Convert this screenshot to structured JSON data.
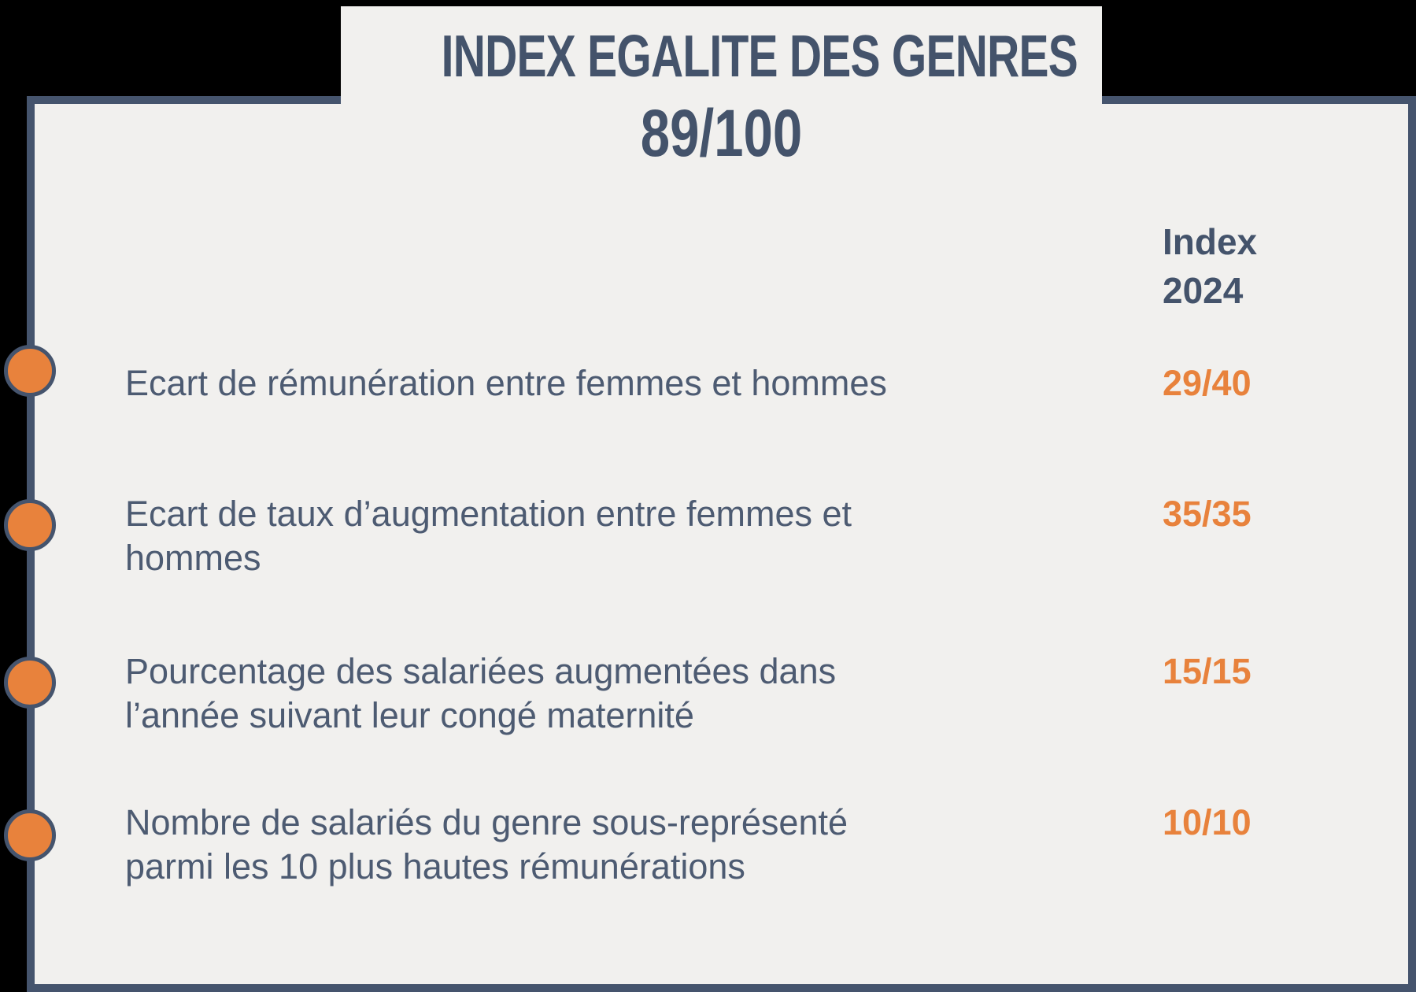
{
  "title": {
    "text": "INDEX EGALITE DES GENRES",
    "overall_score": "89/100"
  },
  "column_header": {
    "line1": "Index",
    "line2": "2024"
  },
  "rows": [
    {
      "label": "Ecart de rémunération entre femmes et hommes",
      "score": "29/40"
    },
    {
      "label": "Ecart de taux d’augmentation entre femmes et\nhommes",
      "score": "35/35"
    },
    {
      "label": "Pourcentage des salariées augmentées dans\nl’année suivant leur congé maternité",
      "score": "15/15"
    },
    {
      "label": "Nombre de salariés du genre sous-représenté\nparmi les 10 plus hautes rémunérations",
      "score": "10/10"
    }
  ],
  "colors": {
    "background": "#000000",
    "card_background": "#f1f0ee",
    "border_blue": "#45546d",
    "heading_blue": "#44536b",
    "text_blue": "#4d5b72",
    "accent_orange": "#e8823c"
  }
}
